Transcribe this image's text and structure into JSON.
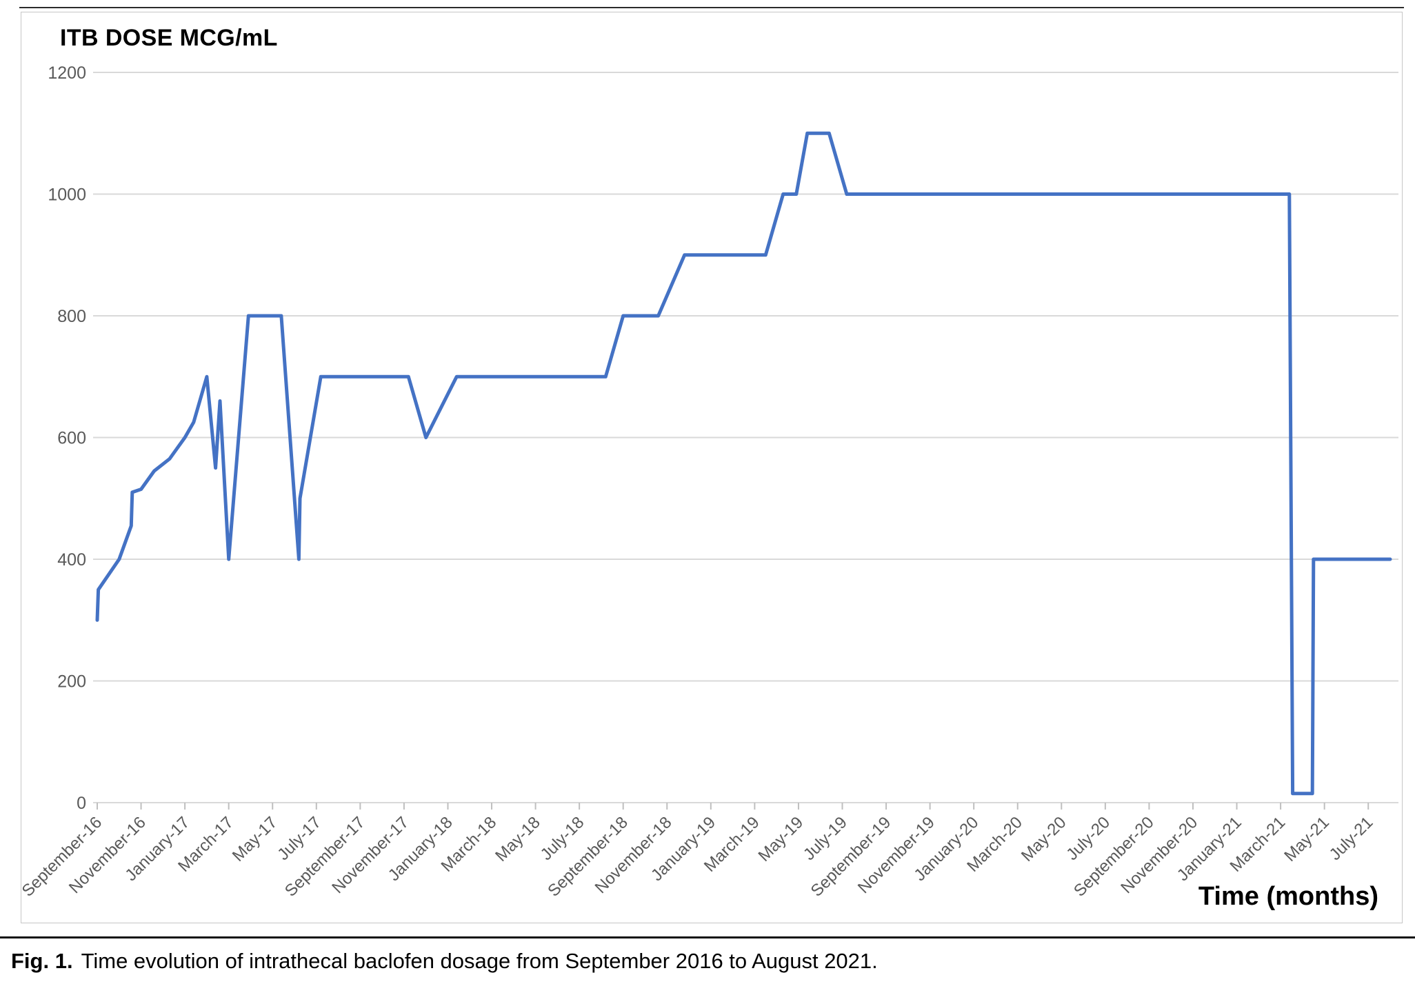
{
  "caption": {
    "label": "Fig. 1.",
    "text": "Time evolution of intrathecal baclofen dosage from September 2016 to August 2021."
  },
  "chart_data": {
    "type": "line",
    "title": "ITB DOSE MCG/mL",
    "xlabel": "Time (months)",
    "ylabel": "ITB dose (mcg/mL)",
    "x_unit": "months since Sep-2016",
    "xlim": [
      0,
      59
    ],
    "ylim": [
      0,
      1200
    ],
    "yticks": [
      0,
      200,
      400,
      600,
      800,
      1000,
      1200
    ],
    "xtick_months": [
      0,
      2,
      4,
      6,
      8,
      10,
      12,
      14,
      16,
      18,
      20,
      22,
      24,
      26,
      28,
      30,
      32,
      34,
      36,
      38,
      40,
      42,
      44,
      46,
      48,
      50,
      52,
      54,
      56,
      58
    ],
    "xtick_labels": [
      "September-16",
      "November-16",
      "January-17",
      "March-17",
      "May-17",
      "July-17",
      "September-17",
      "November-17",
      "January-18",
      "March-18",
      "May-18",
      "July-18",
      "September-18",
      "November-18",
      "January-19",
      "March-19",
      "May-19",
      "July-19",
      "September-19",
      "November-19",
      "January-20",
      "March-20",
      "May-20",
      "July-20",
      "September-20",
      "November-20",
      "January-21",
      "March-21",
      "May-21",
      "July-21"
    ],
    "grid": "horizontal",
    "legend": "none",
    "gridline_color": "#d9d9d9",
    "tick_color": "#bfbfbf",
    "axis_label_color": "#595959",
    "series": [
      {
        "name": "ITB dose",
        "color": "#4472c4",
        "points": [
          [
            0,
            300
          ],
          [
            0.05,
            350
          ],
          [
            1,
            400
          ],
          [
            1.55,
            455
          ],
          [
            1.6,
            510
          ],
          [
            2,
            515
          ],
          [
            2.6,
            545
          ],
          [
            3.3,
            565
          ],
          [
            4,
            600
          ],
          [
            4.4,
            625
          ],
          [
            5,
            700
          ],
          [
            5.4,
            550
          ],
          [
            5.6,
            660
          ],
          [
            6,
            400
          ],
          [
            6.9,
            800
          ],
          [
            8.4,
            800
          ],
          [
            9.2,
            400
          ],
          [
            9.25,
            500
          ],
          [
            10.2,
            700
          ],
          [
            14.2,
            700
          ],
          [
            15,
            600
          ],
          [
            16.4,
            700
          ],
          [
            23.2,
            700
          ],
          [
            24,
            800
          ],
          [
            25.6,
            800
          ],
          [
            26.8,
            900
          ],
          [
            30.5,
            900
          ],
          [
            31.3,
            1000
          ],
          [
            31.9,
            1000
          ],
          [
            32.4,
            1100
          ],
          [
            33.4,
            1100
          ],
          [
            34.2,
            1000
          ],
          [
            54.4,
            1000
          ],
          [
            54.55,
            15
          ],
          [
            55.45,
            15
          ],
          [
            55.5,
            400
          ],
          [
            59,
            400
          ]
        ]
      }
    ]
  }
}
